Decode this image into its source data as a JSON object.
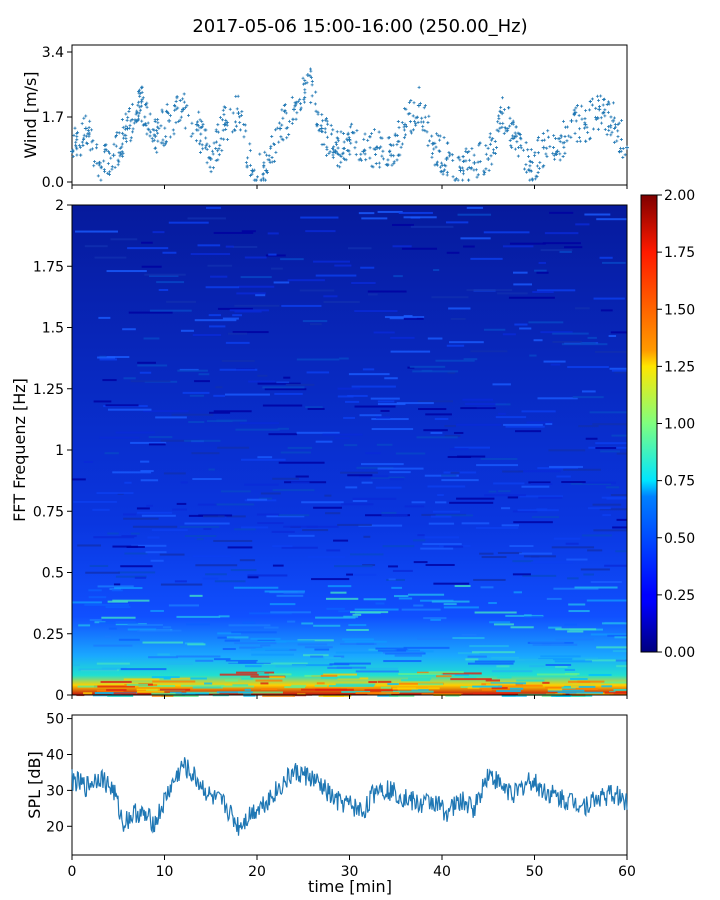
{
  "chart_data": [
    {
      "type": "scatter",
      "panel": "wind",
      "title": "2017-05-06 15:00-16:00 (250.00_Hz)",
      "ylabel": "Wind [m/s]",
      "xlim": [
        0,
        60
      ],
      "ylim": [
        0,
        3.4
      ],
      "yticks": [
        "0.0",
        "1.7",
        "3.4"
      ],
      "marker": "+",
      "color": "#1f77b4",
      "series": [
        {
          "x": [
            0,
            1.5,
            3,
            4.5,
            6,
            7.5,
            9,
            10.5,
            12,
            13.5,
            15,
            16.5,
            18,
            19.5,
            21,
            22.5,
            24,
            25.5,
            27,
            28.5,
            30,
            31.5,
            33,
            34.5,
            36,
            37.5,
            39,
            40.5,
            42,
            43.5,
            45,
            46.5,
            48,
            49.5,
            51,
            52.5,
            54,
            55.5,
            57,
            58.5,
            60
          ],
          "y": [
            0.8,
            1.4,
            0.5,
            0.7,
            1.4,
            2.1,
            1.2,
            1.6,
            1.9,
            1.5,
            0.6,
            1.5,
            1.8,
            0.3,
            0.3,
            1.4,
            1.9,
            2.8,
            1.4,
            0.8,
            1.1,
            0.8,
            0.9,
            0.7,
            1.5,
            2.0,
            1.0,
            0.6,
            0.3,
            0.5,
            0.6,
            1.8,
            1.2,
            0.3,
            0.9,
            0.8,
            1.6,
            1.5,
            1.9,
            1.6,
            0.9
          ]
        }
      ]
    },
    {
      "type": "heatmap",
      "panel": "spectrogram",
      "ylabel": "FFT Frequenz [Hz]",
      "xlim": [
        0,
        60
      ],
      "ylim": [
        0,
        2
      ],
      "yticks": [
        "0",
        "0.25",
        "0.5",
        "0.75",
        "1",
        "1.25",
        "1.5",
        "1.75",
        "2"
      ],
      "colormap": "jet",
      "colorbar": {
        "range": [
          0,
          2.0
        ],
        "ticks": [
          "0.00",
          "0.25",
          "0.50",
          "0.75",
          "1.00",
          "1.25",
          "1.50",
          "1.75",
          "2.00"
        ]
      }
    },
    {
      "type": "line",
      "panel": "spl",
      "ylabel": "SPL [dB]",
      "xlabel": "time [min]",
      "xlim": [
        0,
        60
      ],
      "ylim": [
        12,
        51
      ],
      "xticks": [
        "0",
        "10",
        "20",
        "30",
        "40",
        "50",
        "60"
      ],
      "yticks": [
        "20",
        "30",
        "40",
        "50"
      ],
      "color": "#1f77b4",
      "series": [
        {
          "x": [
            0,
            1.5,
            3,
            4.5,
            5.5,
            7,
            9,
            10.5,
            12,
            13.5,
            15,
            16.5,
            18,
            19.5,
            21,
            22.5,
            24,
            25.5,
            27,
            28.5,
            30,
            31.5,
            33,
            34.5,
            36,
            37.5,
            39,
            40.5,
            42,
            43.5,
            45,
            46.5,
            48,
            49.5,
            51,
            52.5,
            54,
            55.5,
            57,
            58.5,
            60
          ],
          "y": [
            33,
            31,
            34,
            30,
            21,
            24,
            21,
            30,
            37,
            33,
            28,
            26,
            20,
            24,
            27,
            31,
            35,
            34,
            31,
            27,
            26,
            24,
            31,
            30,
            28,
            26,
            27,
            24,
            27,
            25,
            35,
            31,
            29,
            33,
            30,
            28,
            27,
            26,
            28,
            29,
            27
          ]
        }
      ]
    }
  ]
}
